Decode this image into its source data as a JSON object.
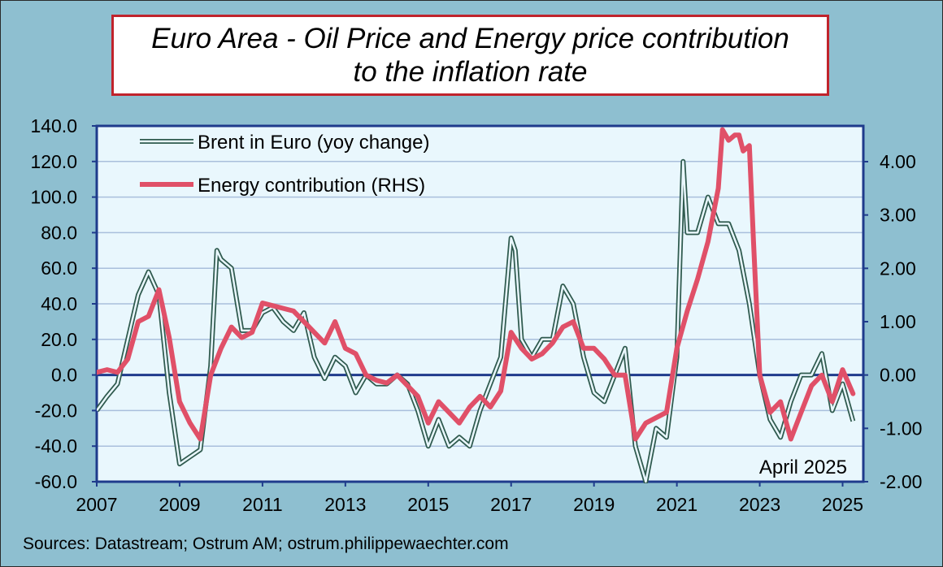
{
  "title": "Euro Area - Oil Price and Energy price contribution\nto the inflation rate",
  "note": "April 2025",
  "source": "Sources: Datastream; Ostrum AM; ostrum.philippewaechter.com",
  "colors": {
    "background": "#8ebfd0",
    "plot_bg": "#e9f7fd",
    "brent": "#2f5a4e",
    "energy": "#e05068",
    "axis": "#1f3b8c",
    "title_border": "#c0232c"
  },
  "chart_data": {
    "type": "line",
    "title": "Euro Area - Oil Price and Energy price contribution to the inflation rate",
    "xlabel": "",
    "ylabel": "",
    "x_ticks": [
      "2007",
      "2009",
      "2011",
      "2013",
      "2015",
      "2017",
      "2019",
      "2021",
      "2023",
      "2025"
    ],
    "xlim": [
      2007.0,
      2025.5
    ],
    "ylim_left": [
      -60,
      140
    ],
    "ylim_right": [
      -2,
      4.67
    ],
    "y_ticks_left": [
      "140.0",
      "120.0",
      "100.0",
      "80.0",
      "60.0",
      "40.0",
      "20.0",
      "0.0",
      "-20.0",
      "-40.0",
      "-60.0"
    ],
    "y_ticks_right": [
      "4.00",
      "3.00",
      "2.00",
      "1.00",
      "0.00",
      "-1.00",
      "-2.00"
    ],
    "grid": true,
    "legend": "top-left",
    "series": [
      {
        "name": "Brent in Euro (yoy change)",
        "axis": "left",
        "style": "double-line",
        "x": [
          2007.0,
          2007.25,
          2007.5,
          2007.75,
          2008.0,
          2008.25,
          2008.5,
          2008.75,
          2009.0,
          2009.25,
          2009.5,
          2009.75,
          2009.9,
          2010.0,
          2010.25,
          2010.5,
          2010.75,
          2011.0,
          2011.25,
          2011.5,
          2011.75,
          2012.0,
          2012.25,
          2012.5,
          2012.75,
          2013.0,
          2013.25,
          2013.5,
          2013.75,
          2014.0,
          2014.25,
          2014.5,
          2014.75,
          2015.0,
          2015.25,
          2015.5,
          2015.75,
          2016.0,
          2016.25,
          2016.5,
          2016.75,
          2017.0,
          2017.1,
          2017.25,
          2017.5,
          2017.75,
          2018.0,
          2018.25,
          2018.5,
          2018.75,
          2019.0,
          2019.25,
          2019.5,
          2019.75,
          2020.0,
          2020.25,
          2020.5,
          2020.75,
          2021.0,
          2021.15,
          2021.25,
          2021.5,
          2021.75,
          2022.0,
          2022.25,
          2022.5,
          2022.75,
          2023.0,
          2023.25,
          2023.5,
          2023.75,
          2024.0,
          2024.25,
          2024.5,
          2024.75,
          2025.0,
          2025.25
        ],
        "values": [
          -20,
          -12,
          -5,
          20,
          45,
          58,
          45,
          -10,
          -50,
          -46,
          -42,
          5,
          70,
          65,
          60,
          25,
          25,
          35,
          38,
          30,
          25,
          35,
          10,
          -2,
          10,
          5,
          -10,
          0,
          -5,
          -5,
          0,
          -5,
          -20,
          -40,
          -25,
          -40,
          -35,
          -40,
          -20,
          -5,
          10,
          77,
          70,
          20,
          10,
          20,
          20,
          50,
          40,
          10,
          -10,
          -15,
          0,
          15,
          -40,
          -60,
          -30,
          -35,
          10,
          120,
          80,
          80,
          100,
          85,
          85,
          70,
          40,
          0,
          -25,
          -35,
          -15,
          0,
          0,
          12,
          -20,
          -5,
          -26
        ]
      },
      {
        "name": "Energy contribution (RHS)",
        "axis": "right",
        "style": "thick",
        "x": [
          2007.0,
          2007.25,
          2007.5,
          2007.75,
          2008.0,
          2008.25,
          2008.5,
          2008.75,
          2009.0,
          2009.25,
          2009.5,
          2009.75,
          2010.0,
          2010.25,
          2010.5,
          2010.75,
          2011.0,
          2011.25,
          2011.5,
          2011.75,
          2012.0,
          2012.25,
          2012.5,
          2012.75,
          2013.0,
          2013.25,
          2013.5,
          2013.75,
          2014.0,
          2014.25,
          2014.5,
          2014.75,
          2015.0,
          2015.25,
          2015.5,
          2015.75,
          2016.0,
          2016.25,
          2016.5,
          2016.75,
          2017.0,
          2017.25,
          2017.5,
          2017.75,
          2018.0,
          2018.25,
          2018.5,
          2018.75,
          2019.0,
          2019.25,
          2019.5,
          2019.75,
          2020.0,
          2020.25,
          2020.5,
          2020.75,
          2021.0,
          2021.25,
          2021.5,
          2021.75,
          2022.0,
          2022.1,
          2022.25,
          2022.4,
          2022.5,
          2022.6,
          2022.75,
          2022.85,
          2023.0,
          2023.25,
          2023.5,
          2023.75,
          2024.0,
          2024.25,
          2024.5,
          2024.75,
          2025.0,
          2025.25
        ],
        "values": [
          0.05,
          0.1,
          0.05,
          0.3,
          1.0,
          1.1,
          1.6,
          0.7,
          -0.5,
          -0.9,
          -1.2,
          0.0,
          0.5,
          0.9,
          0.7,
          0.8,
          1.35,
          1.3,
          1.25,
          1.2,
          1.0,
          0.8,
          0.6,
          1.0,
          0.5,
          0.4,
          0.0,
          -0.1,
          -0.15,
          0.0,
          -0.2,
          -0.4,
          -0.9,
          -0.5,
          -0.7,
          -0.9,
          -0.6,
          -0.4,
          -0.6,
          -0.3,
          0.8,
          0.5,
          0.3,
          0.4,
          0.6,
          0.9,
          1.0,
          0.5,
          0.5,
          0.3,
          0.0,
          0.0,
          -1.2,
          -0.9,
          -0.8,
          -0.7,
          0.5,
          1.2,
          1.8,
          2.5,
          3.5,
          4.6,
          4.4,
          4.5,
          4.5,
          4.2,
          4.3,
          2.5,
          0.0,
          -0.7,
          -0.5,
          -1.2,
          -0.7,
          -0.2,
          0.0,
          -0.5,
          0.1,
          -0.35
        ]
      }
    ]
  }
}
